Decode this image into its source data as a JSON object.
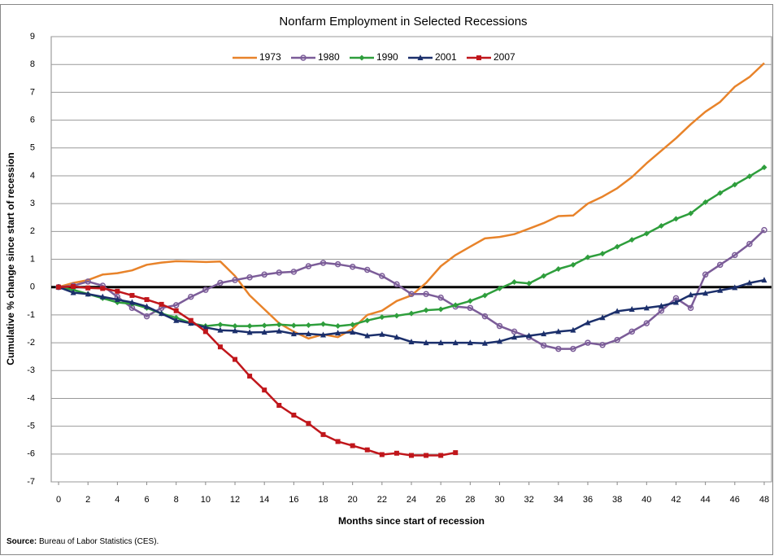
{
  "chart_data": {
    "type": "line",
    "title": "Nonfarm Employment in Selected Recessions",
    "x_label": "Months since start of recession",
    "y_label": "Cumulative % change since start of recession",
    "source_label": "Source:",
    "source_text": "Bureau of Labor Statistics (CES).",
    "x": [
      0,
      1,
      2,
      3,
      4,
      5,
      6,
      7,
      8,
      9,
      10,
      11,
      12,
      13,
      14,
      15,
      16,
      17,
      18,
      19,
      20,
      21,
      22,
      23,
      24,
      25,
      26,
      27,
      28,
      29,
      30,
      31,
      32,
      33,
      34,
      35,
      36,
      37,
      38,
      39,
      40,
      41,
      42,
      43,
      44,
      45,
      46,
      47,
      48
    ],
    "xlim": [
      -0.5,
      48.5
    ],
    "xticks": [
      0,
      2,
      4,
      6,
      8,
      10,
      12,
      14,
      16,
      18,
      20,
      22,
      24,
      26,
      28,
      30,
      32,
      34,
      36,
      38,
      40,
      42,
      44,
      46,
      48
    ],
    "ylim": [
      -7,
      9
    ],
    "yticks": [
      -7,
      -6,
      -5,
      -4,
      -3,
      -2,
      -1,
      0,
      1,
      2,
      3,
      4,
      5,
      6,
      7,
      8,
      9
    ],
    "grid": true,
    "legend": "top",
    "series": [
      {
        "name": "1973",
        "color": "#e8832a",
        "marker": "none",
        "values": [
          0,
          0.15,
          0.25,
          0.45,
          0.5,
          0.6,
          0.8,
          0.88,
          0.93,
          0.92,
          0.9,
          0.92,
          0.4,
          -0.3,
          -0.8,
          -1.3,
          -1.6,
          -1.85,
          -1.7,
          -1.8,
          -1.5,
          -1.0,
          -0.85,
          -0.5,
          -0.3,
          0.15,
          0.75,
          1.15,
          1.45,
          1.75,
          1.8,
          1.9,
          2.1,
          2.3,
          2.55,
          2.57,
          3.0,
          3.25,
          3.55,
          3.95,
          4.45,
          4.9,
          5.35,
          5.85,
          6.3,
          6.65,
          7.2,
          7.55,
          8.05
        ]
      },
      {
        "name": "1980",
        "color": "#7b5c98",
        "marker": "circle",
        "values": [
          0,
          0.05,
          0.2,
          0.05,
          -0.35,
          -0.75,
          -1.05,
          -0.75,
          -0.65,
          -0.35,
          -0.1,
          0.15,
          0.25,
          0.35,
          0.45,
          0.52,
          0.55,
          0.75,
          0.87,
          0.82,
          0.73,
          0.62,
          0.4,
          0.1,
          -0.25,
          -0.25,
          -0.38,
          -0.7,
          -0.75,
          -1.05,
          -1.4,
          -1.6,
          -1.8,
          -2.1,
          -2.22,
          -2.22,
          -2.0,
          -2.08,
          -1.9,
          -1.6,
          -1.3,
          -0.85,
          -0.4,
          -0.75,
          0.45,
          0.8,
          1.15,
          1.55,
          2.05
        ]
      },
      {
        "name": "1990",
        "color": "#2e9e3c",
        "marker": "diamond",
        "values": [
          0,
          -0.1,
          -0.25,
          -0.4,
          -0.55,
          -0.6,
          -0.75,
          -0.95,
          -1.1,
          -1.3,
          -1.4,
          -1.35,
          -1.4,
          -1.4,
          -1.38,
          -1.35,
          -1.38,
          -1.37,
          -1.33,
          -1.4,
          -1.35,
          -1.2,
          -1.08,
          -1.03,
          -0.95,
          -0.83,
          -0.8,
          -0.65,
          -0.5,
          -0.3,
          -0.05,
          0.18,
          0.13,
          0.4,
          0.65,
          0.8,
          1.07,
          1.2,
          1.45,
          1.7,
          1.92,
          2.2,
          2.45,
          2.65,
          3.05,
          3.38,
          3.68,
          3.98,
          4.3
        ]
      },
      {
        "name": "2001",
        "color": "#1b2f6b",
        "marker": "triangle",
        "values": [
          0,
          -0.2,
          -0.25,
          -0.35,
          -0.45,
          -0.55,
          -0.7,
          -0.95,
          -1.2,
          -1.3,
          -1.45,
          -1.55,
          -1.57,
          -1.63,
          -1.62,
          -1.58,
          -1.68,
          -1.68,
          -1.72,
          -1.65,
          -1.62,
          -1.75,
          -1.7,
          -1.8,
          -1.97,
          -2.0,
          -2.0,
          -2.0,
          -2.0,
          -2.02,
          -1.95,
          -1.8,
          -1.75,
          -1.68,
          -1.6,
          -1.55,
          -1.28,
          -1.1,
          -0.87,
          -0.8,
          -0.75,
          -0.68,
          -0.55,
          -0.28,
          -0.22,
          -0.12,
          -0.02,
          0.15,
          0.25
        ]
      },
      {
        "name": "2007",
        "color": "#c0161b",
        "marker": "square",
        "values": [
          0,
          0.02,
          -0.03,
          -0.05,
          -0.15,
          -0.3,
          -0.45,
          -0.62,
          -0.85,
          -1.2,
          -1.6,
          -2.15,
          -2.6,
          -3.2,
          -3.7,
          -4.25,
          -4.6,
          -4.9,
          -5.3,
          -5.55,
          -5.7,
          -5.85,
          -6.02,
          -5.97,
          -6.05,
          -6.05,
          -6.05,
          -5.95,
          null,
          null,
          null,
          null,
          null,
          null,
          null,
          null,
          null,
          null,
          null,
          null,
          null,
          null,
          null,
          null,
          null,
          null,
          null,
          null,
          null
        ]
      }
    ]
  }
}
